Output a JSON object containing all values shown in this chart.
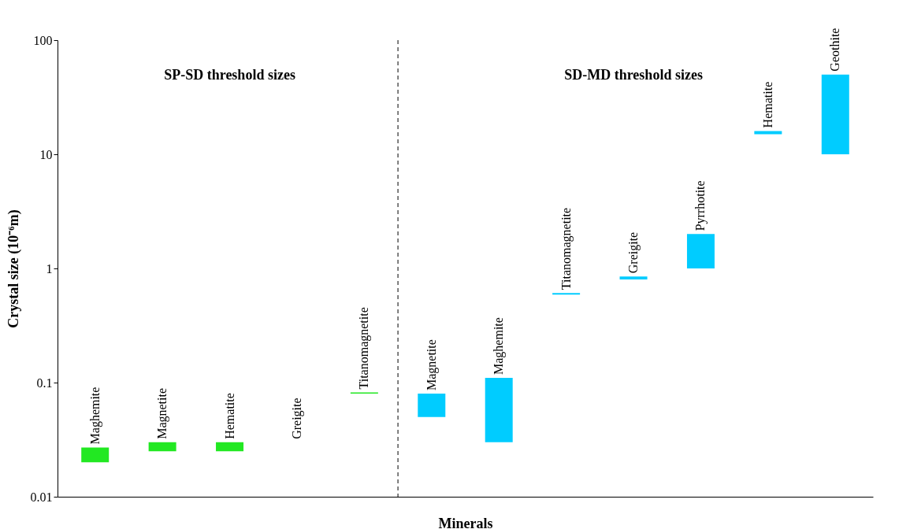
{
  "chart_data": {
    "type": "bar",
    "xlabel": "Minerals",
    "ylabel": "Crystal size (10⁻⁶m)",
    "categories": [
      "Maghemite",
      "Magnetite",
      "Hematite",
      "Greigite",
      "Titanomagnetite",
      "Magnetite",
      "Maghemite",
      "Titanomagnetite",
      "Greigite",
      "Pyrrhotite",
      "Hematite",
      "Geothite"
    ],
    "series": [
      {
        "color": "#22e822",
        "base": [
          0.02,
          0.025,
          0.025,
          null,
          0.08,
          null,
          null,
          null,
          null,
          null,
          null,
          null
        ],
        "values": [
          0.007,
          0.005,
          0.005,
          null,
          0.002,
          null,
          null,
          null,
          null,
          null,
          null,
          null
        ]
      },
      {
        "color": "#00ccff",
        "base": [
          null,
          null,
          null,
          null,
          null,
          0.05,
          0.03,
          0.59,
          0.8,
          1,
          15,
          10
        ],
        "values": [
          null,
          null,
          null,
          null,
          null,
          0.03,
          0.08,
          0.02,
          0.05,
          1,
          1,
          40
        ]
      }
    ],
    "log": true,
    "ylim": [
      0.01,
      100
    ],
    "yticks": [
      0.01,
      0.1,
      1,
      10,
      100
    ],
    "grid": false,
    "legend": false,
    "tick_labels": "y",
    "annotations": [
      "SP-SD threshold sizes",
      "SD-MD threshold sizes"
    ]
  }
}
